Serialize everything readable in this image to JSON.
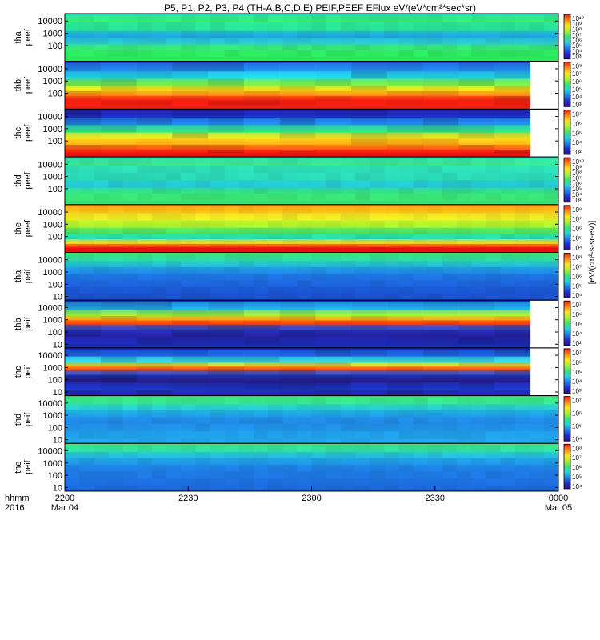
{
  "chart_data": {
    "type": "heatmap",
    "title": "P5, P1, P2, P3, P4 (TH-A,B,C,D,E) PEIF,PEEF EFlux eV/(eV*cm²*sec*sr)",
    "colorbar_unit_label": "[eV/(cm²-s-sr-eV)]",
    "x_axis": {
      "ticks": [
        "2200",
        "2230",
        "2300",
        "2330",
        "0000"
      ],
      "date_labels": [
        "Mar 04",
        "",
        "",
        "",
        "Mar 05"
      ],
      "row_labels": [
        "hhmm",
        "2016"
      ],
      "range": [
        "2016-03-04 22:00",
        "2016-03-05 00:00"
      ]
    },
    "panels": [
      {
        "probe": "tha",
        "product": "peef",
        "ylabel": "tha\npeef",
        "yticks": [
          "10000",
          "1000",
          "100"
        ],
        "ylog": true,
        "colorbar_ticks": [
          "10¹⁰",
          "10⁹",
          "10⁸",
          "10⁷",
          "10⁶",
          "10⁵",
          "10⁴",
          "10³"
        ],
        "data_ends_early": false,
        "bands": [
          {
            "y": 30000,
            "c": "#20d8c8"
          },
          {
            "y": 8000,
            "c": "#38ea70"
          },
          {
            "y": 1500,
            "c": "#26dfa0"
          },
          {
            "y": 400,
            "c": "#1f9fe6"
          },
          {
            "y": 120,
            "c": "#2bcfcc"
          },
          {
            "y": 40,
            "c": "#36e66a"
          },
          {
            "y": 12,
            "c": "#2ae85c"
          }
        ]
      },
      {
        "probe": "thb",
        "product": "peef",
        "ylabel": "thb\npeef",
        "yticks": [
          "10000",
          "1000",
          "100"
        ],
        "ylog": true,
        "colorbar_ticks": [
          "10⁸",
          "10⁷",
          "10⁶",
          "10⁵",
          "10⁴",
          "10³"
        ],
        "data_ends_early": true,
        "bands": [
          {
            "y": 30000,
            "c": "#1e34c8"
          },
          {
            "y": 6000,
            "c": "#1f8ee8"
          },
          {
            "y": 1500,
            "c": "#1fd0d8"
          },
          {
            "y": 400,
            "c": "#7cf03a"
          },
          {
            "y": 150,
            "c": "#ffd31a"
          },
          {
            "y": 60,
            "c": "#ff8a10"
          },
          {
            "y": 25,
            "c": "#ee1e10"
          },
          {
            "y": 10,
            "c": "#ee1e10"
          }
        ]
      },
      {
        "probe": "thc",
        "product": "peef",
        "ylabel": "thc\npeef",
        "yticks": [
          "10000",
          "1000",
          "100"
        ],
        "ylog": true,
        "colorbar_ticks": [
          "10⁷",
          "10⁶",
          "10⁵",
          "10⁴",
          "10³"
        ],
        "data_ends_early": true,
        "bands": [
          {
            "y": 30000,
            "c": "#22187a"
          },
          {
            "y": 8000,
            "c": "#1d2ec0"
          },
          {
            "y": 2000,
            "c": "#1f8cea"
          },
          {
            "y": 500,
            "c": "#30e07a"
          },
          {
            "y": 150,
            "c": "#ffe21a"
          },
          {
            "y": 50,
            "c": "#ffab14"
          },
          {
            "y": 20,
            "c": "#ff5a10"
          },
          {
            "y": 10,
            "c": "#e81410"
          }
        ]
      },
      {
        "probe": "thd",
        "product": "peef",
        "ylabel": "thd\npeef",
        "yticks": [
          "10000",
          "1000",
          "100"
        ],
        "ylog": true,
        "colorbar_ticks": [
          "10¹⁰",
          "10⁹",
          "10⁸",
          "10⁷",
          "10⁶",
          "10⁵",
          "10⁴",
          "10³"
        ],
        "data_ends_early": false,
        "bands": [
          {
            "y": 30000,
            "c": "#30dcc0"
          },
          {
            "y": 8000,
            "c": "#36e692"
          },
          {
            "y": 2000,
            "c": "#2cdcbe"
          },
          {
            "y": 500,
            "c": "#2ad8b4"
          },
          {
            "y": 120,
            "c": "#24c4d8"
          },
          {
            "y": 40,
            "c": "#36e07c"
          },
          {
            "y": 12,
            "c": "#38e474"
          }
        ]
      },
      {
        "probe": "the",
        "product": "peef",
        "ylabel": "the\npeef",
        "yticks": [
          "10000",
          "1000",
          "100"
        ],
        "ylog": true,
        "colorbar_ticks": [
          "10⁸",
          "10⁷",
          "10⁶",
          "10⁵",
          "10⁴"
        ],
        "data_ends_early": false,
        "bands": [
          {
            "y": 30000,
            "c": "#ff8a12"
          },
          {
            "y": 8000,
            "c": "#ffc61a"
          },
          {
            "y": 2000,
            "c": "#e8ef26"
          },
          {
            "y": 500,
            "c": "#a0f030"
          },
          {
            "y": 150,
            "c": "#38e070"
          },
          {
            "y": 60,
            "c": "#2adcb8"
          },
          {
            "y": 25,
            "c": "#ffdc1a"
          },
          {
            "y": 13,
            "c": "#ff3010"
          },
          {
            "y": 10,
            "c": "#e81010"
          }
        ]
      },
      {
        "probe": "tha",
        "product": "peif",
        "ylabel": "tha\npeif",
        "yticks": [
          "10000",
          "1000",
          "100",
          "10"
        ],
        "ylog": true,
        "colorbar_ticks": [
          "10⁸",
          "10⁷",
          "10⁶",
          "10⁵",
          "10⁴"
        ],
        "data_ends_early": false,
        "bands": [
          {
            "y": 30000,
            "c": "#38e46a"
          },
          {
            "y": 8000,
            "c": "#2edca0"
          },
          {
            "y": 2500,
            "c": "#22b8d8"
          },
          {
            "y": 700,
            "c": "#1f86e6"
          },
          {
            "y": 200,
            "c": "#1e6ee0"
          },
          {
            "y": 60,
            "c": "#1e62da"
          },
          {
            "y": 15,
            "c": "#1a54d0"
          },
          {
            "y": 6,
            "c": "#1a50cc"
          }
        ]
      },
      {
        "probe": "thb",
        "product": "peif",
        "ylabel": "thb\npeif",
        "yticks": [
          "10000",
          "1000",
          "100",
          "10"
        ],
        "ylog": true,
        "colorbar_ticks": [
          "10⁷",
          "10⁶",
          "10⁵",
          "10⁴",
          "10³"
        ],
        "data_ends_early": true,
        "bands": [
          {
            "y": 30000,
            "c": "#1a2fb8"
          },
          {
            "y": 6000,
            "c": "#22b4e0"
          },
          {
            "y": 2000,
            "c": "#a0f030"
          },
          {
            "y": 900,
            "c": "#ff9a12"
          },
          {
            "y": 400,
            "c": "#ff3a10"
          },
          {
            "y": 150,
            "c": "#1e46cc"
          },
          {
            "y": 40,
            "c": "#2a1e9e"
          },
          {
            "y": 10,
            "c": "#1a2ab0"
          }
        ]
      },
      {
        "probe": "thc",
        "product": "peif",
        "ylabel": "thc\npeif",
        "yticks": [
          "10000",
          "1000",
          "100",
          "10"
        ],
        "ylog": true,
        "colorbar_ticks": [
          "10⁷",
          "10⁶",
          "10⁵",
          "10⁴",
          "10³"
        ],
        "data_ends_early": true,
        "bands": [
          {
            "y": 30000,
            "c": "#1a2ab8"
          },
          {
            "y": 8000,
            "c": "#1e66dc"
          },
          {
            "y": 2500,
            "c": "#30dcd0"
          },
          {
            "y": 1200,
            "c": "#ffd01a"
          },
          {
            "y": 600,
            "c": "#ff4010"
          },
          {
            "y": 250,
            "c": "#1e50d0"
          },
          {
            "y": 60,
            "c": "#22167e"
          },
          {
            "y": 15,
            "c": "#1a36c0"
          },
          {
            "y": 6,
            "c": "#1e2aa8"
          }
        ]
      },
      {
        "probe": "thd",
        "product": "peif",
        "ylabel": "thd\npeif",
        "yticks": [
          "10000",
          "1000",
          "100",
          "10"
        ],
        "ylog": true,
        "colorbar_ticks": [
          "10⁷",
          "10⁶",
          "10⁵",
          "10⁴"
        ],
        "data_ends_early": false,
        "bands": [
          {
            "y": 30000,
            "c": "#40e86a"
          },
          {
            "y": 8000,
            "c": "#36e696"
          },
          {
            "y": 2500,
            "c": "#26c8d8"
          },
          {
            "y": 700,
            "c": "#1f9ae6"
          },
          {
            "y": 200,
            "c": "#1f86e4"
          },
          {
            "y": 50,
            "c": "#2094e6"
          },
          {
            "y": 12,
            "c": "#20a2e6"
          },
          {
            "y": 6,
            "c": "#22a8e6"
          }
        ]
      },
      {
        "probe": "the",
        "product": "peif",
        "ylabel": "the\npeif",
        "yticks": [
          "10000",
          "1000",
          "100",
          "10"
        ],
        "ylog": true,
        "colorbar_ticks": [
          "10⁸",
          "10⁷",
          "10⁶",
          "10⁵",
          "10⁴"
        ],
        "data_ends_early": false,
        "bands": [
          {
            "y": 30000,
            "c": "#40e86a"
          },
          {
            "y": 8000,
            "c": "#30dca8"
          },
          {
            "y": 2500,
            "c": "#22b8de"
          },
          {
            "y": 700,
            "c": "#1f92e6"
          },
          {
            "y": 200,
            "c": "#1e7ce2"
          },
          {
            "y": 50,
            "c": "#1e76e0"
          },
          {
            "y": 12,
            "c": "#1e6cde"
          },
          {
            "y": 6,
            "c": "#1e66dc"
          }
        ]
      }
    ]
  }
}
